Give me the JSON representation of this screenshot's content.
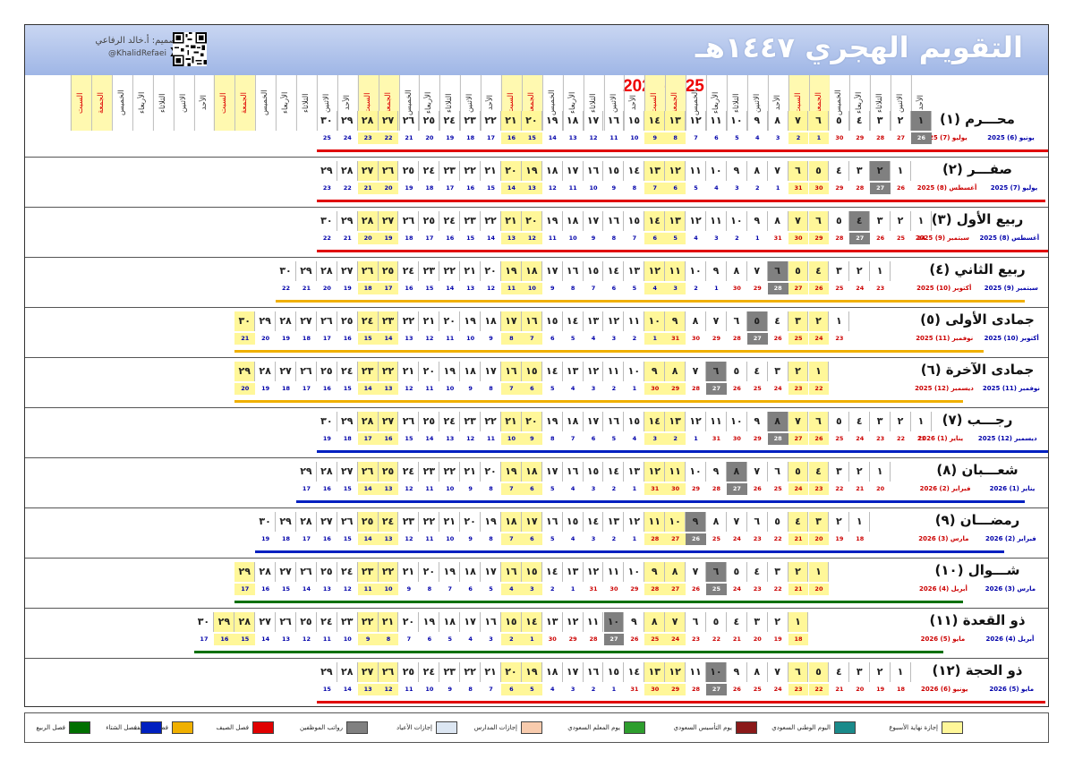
{
  "title": "التقويم الهجري ١٤٤٧هـ",
  "years": "2026-2025",
  "credit": {
    "line1": "تصميم: أ.خالد الرفاعي",
    "handle": "@KhalidRefaei",
    "x_logo": "X"
  },
  "day_names": [
    "الأحد",
    "الاثنين",
    "الثلاثاء",
    "الأربعاء",
    "الخميس",
    "الجمعة",
    "السبت"
  ],
  "hijri_numerals": [
    "١",
    "٢",
    "٣",
    "٤",
    "٥",
    "٦",
    "٧",
    "٨",
    "٩",
    "١٠",
    "١١",
    "١٢",
    "١٣",
    "١٤",
    "١٥",
    "١٦",
    "١٧",
    "١٨",
    "١٩",
    "٢٠",
    "٢١",
    "٢٢",
    "٢٣",
    "٢٤",
    "٢٥",
    "٢٦",
    "٢٧",
    "٢٨",
    "٢٩",
    "٣٠"
  ],
  "colors": {
    "weekend": "#fff799",
    "founding": "#8b1a1a",
    "national": "#1a8a8a",
    "teacher": "#2e9e2e",
    "school": "#f8cbad",
    "eid": "#dce6f2",
    "salary": "#808080",
    "summer": "#e00000",
    "autumn": "#f0b000",
    "winter": "#0020c0",
    "spring": "#007000"
  },
  "months": [
    {
      "name": "محـــرم (١)",
      "greg1": "يونيو (6) 2025",
      "greg2": "يوليو (7) 2025",
      "start_col": 0,
      "days": 30,
      "greg_start": 26,
      "greg_len_prev": 30,
      "season": "summer",
      "salary_day": 1
    },
    {
      "name": "صفـــر (٢)",
      "greg1": "يوليو (7) 2025",
      "greg2": "أغسطس (8) 2025",
      "start_col": 1,
      "days": 29,
      "greg_start": 26,
      "greg_len_prev": 31,
      "season": "summer",
      "salary_day": 2
    },
    {
      "name": "ربيع الأول (٣)",
      "greg1": "أغسطس (8) 2025",
      "greg2": "سبتمبر (9) 2025",
      "start_col": 0,
      "days": 30,
      "greg_start": 24,
      "greg_len_prev": 31,
      "season": "summer",
      "salary_day": 4
    },
    {
      "name": "ربيع الثاني (٤)",
      "greg1": "سبتمبر (9) 2025",
      "greg2": "أكتوبر (10) 2025",
      "start_col": 2,
      "days": 30,
      "greg_start": 23,
      "greg_len_prev": 30,
      "season": "autumn",
      "salary_day": 6
    },
    {
      "name": "جمادى الأولى (٥)",
      "greg1": "أكتوبر (10) 2025",
      "greg2": "نوفمبر (11) 2025",
      "start_col": 4,
      "days": 30,
      "greg_start": 23,
      "greg_len_prev": 31,
      "season": "autumn",
      "salary_day": 5
    },
    {
      "name": "جمادى الآخرة (٦)",
      "greg1": "نوفمبر (11) 2025",
      "greg2": "ديسمبر (12) 2025",
      "start_col": 5,
      "days": 29,
      "greg_start": 22,
      "greg_len_prev": 30,
      "season": "autumn",
      "salary_day": 6
    },
    {
      "name": "رجـــب (٧)",
      "greg1": "ديسمبر (12) 2025",
      "greg2": "يناير (1) 2026",
      "start_col": 0,
      "days": 30,
      "greg_start": 21,
      "greg_len_prev": 31,
      "season": "winter",
      "salary_day": 8
    },
    {
      "name": "شعـــبان (٨)",
      "greg1": "يناير (1) 2026",
      "greg2": "فبراير (2) 2026",
      "start_col": 2,
      "days": 29,
      "greg_start": 20,
      "greg_len_prev": 31,
      "season": "winter",
      "salary_day": 8
    },
    {
      "name": "رمضـــان (٩)",
      "greg1": "فبراير (2) 2026",
      "greg2": "مارس (3) 2026",
      "start_col": 3,
      "days": 30,
      "greg_start": 18,
      "greg_len_prev": 28,
      "season": "winter",
      "salary_day": 9
    },
    {
      "name": "شـــوال (١٠)",
      "greg1": "مارس (3) 2026",
      "greg2": "أبريل (4) 2026",
      "start_col": 5,
      "days": 29,
      "greg_start": 20,
      "greg_len_prev": 31,
      "season": "spring",
      "salary_day": 6
    },
    {
      "name": "ذو القعدة (١١)",
      "greg1": "أبريل (4) 2026",
      "greg2": "مايو (5) 2026",
      "start_col": 6,
      "days": 30,
      "greg_start": 18,
      "greg_len_prev": 30,
      "season": "spring",
      "salary_day": 10
    },
    {
      "name": "ذو الحجة (١٢)",
      "greg1": "مايو (5) 2026",
      "greg2": "يونيو (6) 2026",
      "start_col": 1,
      "days": 29,
      "greg_start": 18,
      "greg_len_prev": 31,
      "season": "summer",
      "salary_day": 10
    }
  ],
  "legend": [
    {
      "label": "إجازة نهاية الأسبوع",
      "color": "#fff799"
    },
    {
      "label": "اليوم الوطني السعودي",
      "color": "#1a8a8a"
    },
    {
      "label": "يوم التأسيس السعودي",
      "color": "#8b1a1a"
    },
    {
      "label": "يوم المعلم السعودي",
      "color": "#2e9e2e"
    },
    {
      "label": "إجازات المدارس",
      "color": "#f8cbad"
    },
    {
      "label": "إجازات الأعياد",
      "color": "#dce6f2"
    },
    {
      "label": "رواتب الموظفين",
      "color": "#808080"
    },
    {
      "label": "فصل الصيف",
      "color": "#e00000"
    },
    {
      "label": "فصل الخريف",
      "color": "#f0b000"
    },
    {
      "label": "فصل الشتاء",
      "color": "#0020c0"
    },
    {
      "label": "فصل الربيع",
      "color": "#007000"
    }
  ]
}
